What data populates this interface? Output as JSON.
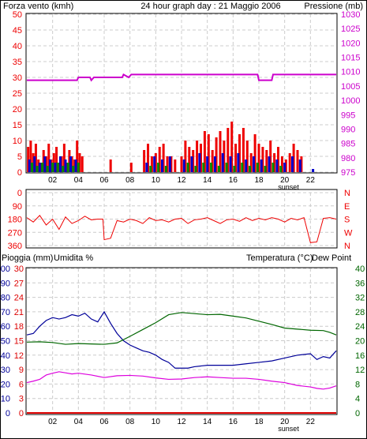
{
  "header": {
    "wind_label": "Forza vento (kmh)",
    "title": "24 hour graph day : 21 Maggio 2006",
    "pressure_label": "Pressione (mb)"
  },
  "lower_header": {
    "rain_label": "Pioggia (mm)",
    "humidity_label": "Umidita %",
    "temperature_label": "Temperatura (°C)",
    "dewpoint_label": "Dew Point"
  },
  "colors": {
    "wind": "#ee0000",
    "pressure": "#cc00cc",
    "avg_wind": "#0000cc",
    "calm_wind": "#008800",
    "direction": "#ee0000",
    "humidity": "#000099",
    "temperature": "#006600",
    "dewpoint": "#dd00dd",
    "rain": "#dd0000",
    "grid": "#cccccc"
  },
  "x_axis": {
    "ticks": [
      "02",
      "04",
      "06",
      "08",
      "10",
      "12",
      "14",
      "16",
      "18",
      "20",
      "22"
    ],
    "sunset_label": "sunset"
  },
  "chart_data": [
    {
      "type": "bar",
      "title": "24 hour graph day : 21 Maggio 2006",
      "ylabel": "Forza vento (kmh)",
      "ylim": [
        0,
        50
      ],
      "yticks": [
        0,
        5,
        10,
        15,
        20,
        25,
        30,
        35,
        40,
        45,
        50
      ],
      "xlim": [
        0,
        24
      ],
      "series": [
        {
          "name": "gust",
          "x": [
            0.1,
            0.3,
            0.5,
            0.7,
            0.9,
            1.1,
            1.3,
            1.5,
            1.7,
            1.9,
            2.1,
            2.3,
            2.5,
            2.7,
            2.9,
            3.1,
            3.3,
            3.5,
            3.7,
            3.9,
            4.1,
            4.3,
            6.5,
            8.1,
            9.1,
            9.4,
            9.7,
            10.0,
            10.3,
            10.6,
            10.9,
            11.2,
            11.5,
            12.0,
            12.3,
            12.6,
            12.9,
            13.2,
            13.5,
            13.8,
            14.1,
            14.4,
            14.7,
            15.0,
            15.3,
            15.6,
            15.9,
            16.2,
            16.5,
            16.8,
            17.1,
            17.4,
            17.7,
            18.0,
            18.3,
            18.6,
            18.9,
            19.2,
            19.5,
            19.8,
            20.1,
            20.4,
            20.7,
            21.0,
            21.3
          ],
          "values": [
            8,
            10,
            6,
            9,
            4,
            3,
            7,
            5,
            9,
            4,
            6,
            8,
            3,
            5,
            9,
            3,
            7,
            5,
            4,
            10,
            6,
            5,
            4,
            3,
            7,
            9,
            5,
            6,
            8,
            9,
            5,
            5,
            4,
            5,
            10,
            8,
            7,
            10,
            9,
            13,
            12,
            7,
            11,
            13,
            10,
            14,
            16,
            9,
            12,
            14,
            10,
            6,
            12,
            9,
            8,
            7,
            10,
            6,
            8,
            5,
            4,
            6,
            9,
            7,
            5
          ]
        },
        {
          "name": "average",
          "x": [
            0.2,
            0.6,
            1.0,
            1.4,
            1.8,
            2.2,
            2.6,
            3.0,
            3.4,
            3.8,
            9.3,
            9.9,
            10.5,
            11.1,
            12.2,
            12.8,
            13.4,
            14.0,
            14.6,
            15.2,
            15.8,
            16.4,
            17.0,
            17.6,
            18.2,
            18.8,
            19.4,
            20.0,
            20.6,
            21.2,
            22.2
          ],
          "values": [
            4,
            5,
            3,
            5,
            4,
            3,
            5,
            4,
            5,
            4,
            3,
            5,
            4,
            5,
            4,
            5,
            6,
            5,
            5,
            6,
            5,
            6,
            4,
            5,
            4,
            5,
            4,
            3,
            5,
            4,
            1
          ]
        },
        {
          "name": "calm",
          "x": [
            0.4,
            0.8,
            1.2,
            1.6,
            2.0,
            2.4,
            2.8,
            3.2,
            3.6,
            4.0,
            9.6,
            10.2,
            10.8,
            12.5,
            13.1,
            13.7,
            14.3,
            14.9,
            15.5,
            16.1,
            16.7,
            17.3,
            17.9,
            18.5,
            19.1,
            19.7
          ],
          "values": [
            3,
            2,
            3,
            2,
            3,
            3,
            2,
            3,
            2,
            3,
            2,
            3,
            2,
            3,
            2,
            3,
            3,
            2,
            3,
            2,
            3,
            2,
            3,
            2,
            3,
            2
          ]
        }
      ]
    },
    {
      "type": "line",
      "ylabel": "Pressione (mb)",
      "ylim": [
        975,
        1030
      ],
      "yticks": [
        975,
        980,
        985,
        990,
        995,
        1000,
        1005,
        1010,
        1015,
        1020,
        1025,
        1030
      ],
      "series": [
        {
          "name": "Pressione",
          "x": [
            0,
            3.9,
            4.0,
            4.9,
            5.0,
            5.2,
            5.4,
            7.4,
            7.5,
            7.9,
            8.1,
            17.9,
            18.0,
            19.0,
            19.1,
            24
          ],
          "values": [
            1007,
            1007,
            1008,
            1008,
            1007,
            1008,
            1008,
            1008,
            1009,
            1008,
            1009,
            1009,
            1007,
            1007,
            1009,
            1009
          ]
        }
      ]
    },
    {
      "type": "line",
      "ylim": [
        0,
        360
      ],
      "yticks": [
        0,
        90,
        180,
        270,
        360
      ],
      "ytick_labels": [
        "360",
        "270",
        "180",
        "90",
        "0"
      ],
      "compass_labels": [
        "N",
        "W",
        "S",
        "E",
        "N"
      ],
      "series": [
        {
          "name": "direzione",
          "x": [
            0,
            0.5,
            1,
            1.5,
            2,
            2.5,
            3,
            3.5,
            4,
            4.5,
            5,
            5.5,
            5.9,
            6.0,
            6.5,
            7,
            7.5,
            8,
            8.5,
            9,
            9.5,
            10,
            10.5,
            11,
            11.5,
            12,
            12.5,
            13,
            13.5,
            14,
            14.5,
            15,
            15.5,
            16,
            16.5,
            17,
            17.5,
            18,
            18.5,
            19,
            19.5,
            20,
            20.5,
            21,
            21.5,
            22,
            22.5,
            23,
            23.5,
            24
          ],
          "values": [
            190,
            160,
            205,
            140,
            180,
            110,
            195,
            150,
            170,
            200,
            175,
            180,
            180,
            40,
            50,
            170,
            160,
            180,
            170,
            150,
            190,
            170,
            175,
            160,
            180,
            185,
            150,
            175,
            180,
            190,
            170,
            150,
            175,
            180,
            165,
            190,
            170,
            185,
            175,
            190,
            180,
            160,
            185,
            175,
            190,
            20,
            25,
            185,
            190,
            180
          ]
        }
      ]
    },
    {
      "type": "line",
      "xlim": [
        0,
        24
      ],
      "left_axes": [
        {
          "name": "Pioggia (mm)",
          "ylim": [
            0,
            30
          ],
          "yticks": [
            0,
            3,
            6,
            9,
            12,
            15,
            18,
            21,
            24,
            27,
            30
          ]
        },
        {
          "name": "Umidita %",
          "ylim": [
            0,
            100
          ],
          "yticks": [
            0,
            10,
            20,
            30,
            40,
            50,
            60,
            70,
            80,
            90,
            100
          ]
        }
      ],
      "right_axis": {
        "name": "Temperatura (°C)",
        "ylim": [
          0,
          40
        ],
        "yticks": [
          0,
          4,
          8,
          12,
          16,
          20,
          24,
          28,
          32,
          36,
          40
        ]
      },
      "series": [
        {
          "name": "Umidita %",
          "x": [
            0,
            0.5,
            1,
            1.5,
            2,
            2.5,
            3,
            3.5,
            4,
            4.5,
            5,
            5.5,
            6,
            6.5,
            7,
            7.5,
            8,
            8.5,
            9,
            9.5,
            10,
            10.5,
            11,
            11.5,
            12,
            12.5,
            13,
            14,
            15,
            16,
            17,
            18,
            19,
            20,
            21,
            22,
            22.5,
            23,
            23.5,
            24
          ],
          "values": [
            54,
            55,
            60,
            64,
            66,
            65,
            66,
            68,
            67,
            69,
            65,
            63,
            70,
            62,
            55,
            50,
            47,
            45,
            43,
            42,
            40,
            37,
            35,
            31,
            31,
            31,
            32,
            33,
            33,
            33,
            34,
            35,
            36,
            38,
            40,
            41,
            37,
            39,
            38,
            43
          ]
        },
        {
          "name": "Temperatura (°C)",
          "x": [
            0,
            1,
            2,
            3,
            4,
            5,
            6,
            7,
            8,
            9,
            10,
            11,
            12,
            13,
            14,
            15,
            16,
            17,
            18,
            19,
            20,
            21,
            22,
            23,
            23.5,
            24
          ],
          "values": [
            19.6,
            19.7,
            19.5,
            19.0,
            19.2,
            19.1,
            19.0,
            19.4,
            21.2,
            23.1,
            25.0,
            27.2,
            27.8,
            27.5,
            27.2,
            27.3,
            26.8,
            26.3,
            25.4,
            24.5,
            23.5,
            23.2,
            22.9,
            22.8,
            22.3,
            21.6
          ]
        },
        {
          "name": "Dew Point",
          "x": [
            0,
            0.5,
            1,
            1.5,
            2,
            2.5,
            3,
            3.5,
            4,
            5,
            6,
            7,
            8,
            9,
            10,
            11,
            12,
            13,
            14,
            15,
            16,
            17,
            18,
            19,
            20,
            21,
            22,
            22.5,
            23,
            23.5,
            24
          ],
          "values": [
            8.4,
            8.8,
            9.3,
            10.5,
            11.0,
            11.4,
            11.1,
            10.8,
            11.0,
            10.5,
            9.8,
            10.3,
            10.4,
            10.2,
            9.7,
            9.3,
            9.4,
            9.8,
            10.0,
            9.8,
            9.6,
            9.6,
            9.3,
            8.8,
            8.4,
            7.6,
            7.2,
            6.8,
            6.6,
            6.9,
            7.5
          ]
        },
        {
          "name": "Pioggia (mm)",
          "x": [
            0,
            24
          ],
          "values": [
            0,
            0
          ]
        }
      ]
    }
  ]
}
